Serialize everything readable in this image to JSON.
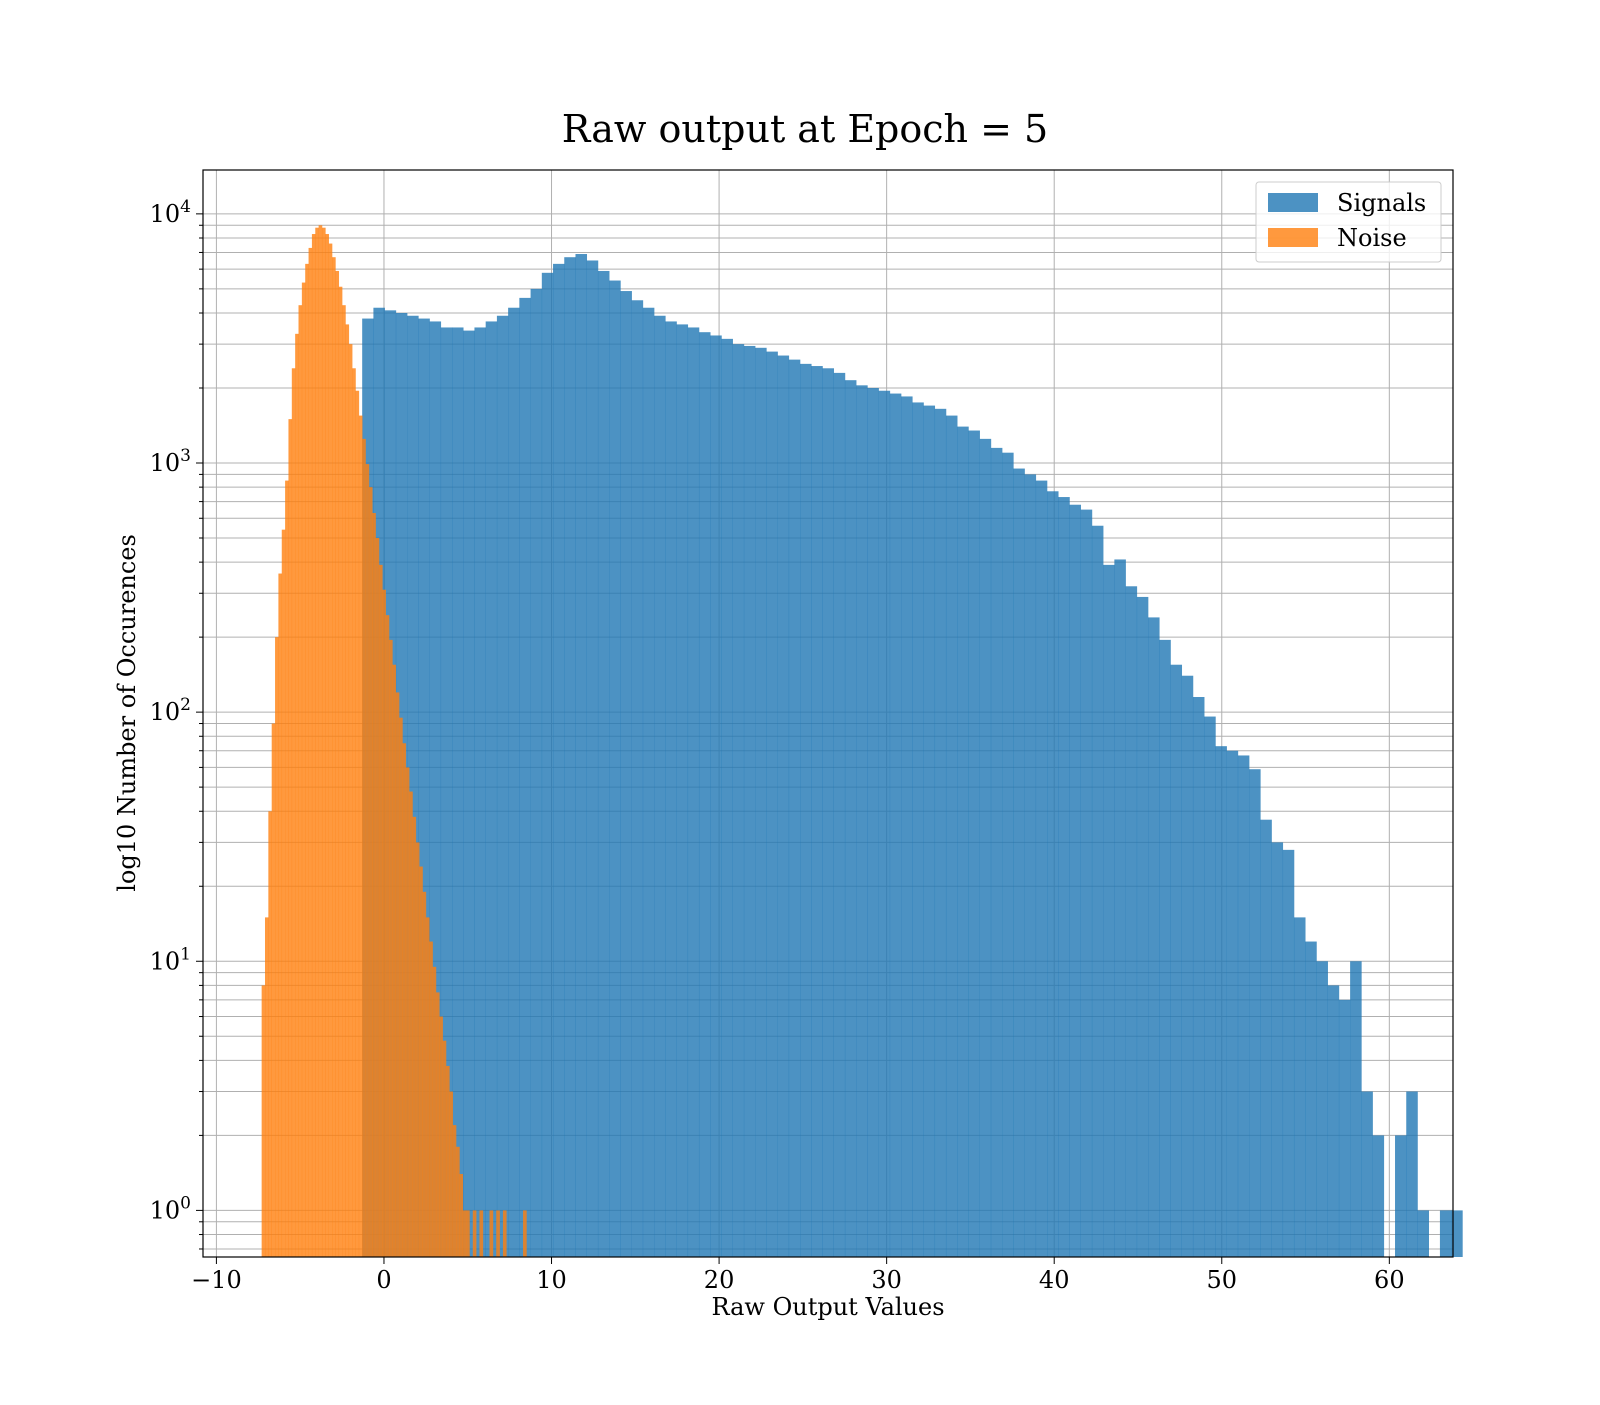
{
  "chart_data": {
    "type": "histogram",
    "title": "Raw output at Epoch = 5",
    "xlabel": "Raw Output Values",
    "ylabel": "log10 Number of Occurences",
    "yscale": "log",
    "xlim": [
      -10.8,
      63.8
    ],
    "ylim": [
      0.65,
      15000
    ],
    "x_ticks": [
      -10,
      0,
      10,
      20,
      30,
      40,
      50,
      60
    ],
    "x_tick_labels": [
      "−10",
      "0",
      "10",
      "20",
      "30",
      "40",
      "50",
      "60"
    ],
    "y_ticks": [
      1,
      10,
      100,
      1000,
      10000
    ],
    "y_tick_labels": [
      {
        "base": "10",
        "exp": "0"
      },
      {
        "base": "10",
        "exp": "1"
      },
      {
        "base": "10",
        "exp": "2"
      },
      {
        "base": "10",
        "exp": "3"
      },
      {
        "base": "10",
        "exp": "4"
      }
    ],
    "grid": true,
    "legend_position": "top-right",
    "series": [
      {
        "name": "Signals",
        "color": "#1f77b4",
        "opacity": 0.8,
        "bin_start": -1.3,
        "bin_width": 0.67,
        "counts": [
          3800,
          4200,
          4100,
          4000,
          3900,
          3800,
          3700,
          3500,
          3500,
          3400,
          3500,
          3700,
          3900,
          4200,
          4600,
          5000,
          5800,
          6300,
          6700,
          6900,
          6500,
          5900,
          5400,
          4900,
          4500,
          4200,
          3900,
          3700,
          3600,
          3500,
          3350,
          3250,
          3150,
          3000,
          2950,
          2900,
          2800,
          2700,
          2600,
          2500,
          2450,
          2400,
          2300,
          2150,
          2050,
          2000,
          1950,
          1900,
          1850,
          1750,
          1700,
          1650,
          1550,
          1400,
          1350,
          1250,
          1150,
          1100,
          950,
          900,
          850,
          770,
          730,
          680,
          650,
          560,
          390,
          410,
          320,
          290,
          240,
          195,
          155,
          140,
          115,
          96,
          73,
          70,
          67,
          59,
          37,
          30,
          28,
          15,
          12,
          10,
          8,
          7,
          10,
          3,
          2,
          0,
          2,
          3,
          1,
          0,
          1,
          1
        ]
      },
      {
        "name": "Noise",
        "color": "#ff7f0e",
        "opacity": 0.8,
        "bin_start": -7.3,
        "bin_width": 0.2,
        "counts": [
          8,
          15,
          40,
          90,
          200,
          360,
          540,
          850,
          1500,
          2400,
          3300,
          4300,
          5300,
          6300,
          7300,
          8300,
          8800,
          9000,
          8800,
          8300,
          7600,
          6700,
          5900,
          5100,
          4300,
          3600,
          3000,
          2400,
          1950,
          1550,
          1250,
          990,
          800,
          630,
          500,
          390,
          310,
          245,
          195,
          155,
          120,
          95,
          75,
          60,
          48,
          38,
          30,
          24,
          19,
          15,
          12,
          9.5,
          7.5,
          6,
          4.8,
          3.8,
          3,
          2.2,
          1.8,
          1.4,
          1,
          1,
          0,
          1,
          0,
          1,
          0,
          0,
          1,
          0,
          1,
          0,
          1,
          0,
          0,
          0,
          0,
          0,
          1
        ]
      }
    ]
  }
}
